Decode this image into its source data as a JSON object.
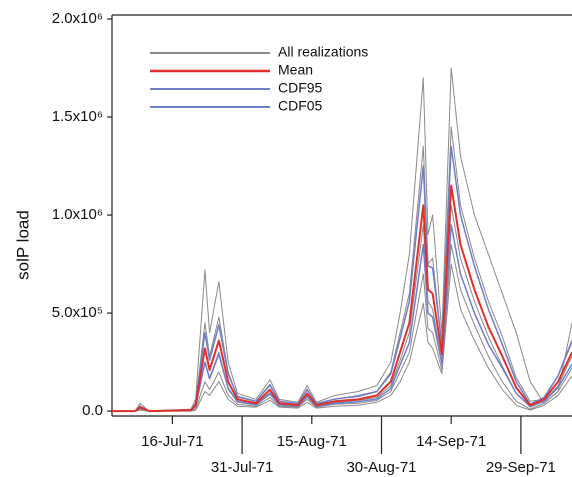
{
  "chart_data": {
    "type": "line",
    "y_label": "solP load",
    "x": [
      "1971-07-03",
      "1971-07-08",
      "1971-07-09",
      "1971-07-11",
      "1971-07-20",
      "1971-07-21",
      "1971-07-23",
      "1971-07-24",
      "1971-07-26",
      "1971-07-28",
      "1971-07-30",
      "1971-08-03",
      "1971-08-06",
      "1971-08-08",
      "1971-08-12",
      "1971-08-14",
      "1971-08-16",
      "1971-08-20",
      "1971-08-25",
      "1971-08-29",
      "1971-09-01",
      "1971-09-03",
      "1971-09-05",
      "1971-09-08",
      "1971-09-09",
      "1971-09-10",
      "1971-09-12",
      "1971-09-14",
      "1971-09-16",
      "1971-09-19",
      "1971-09-22",
      "1971-09-25",
      "1971-09-28",
      "1971-10-01",
      "1971-10-04",
      "1971-10-07",
      "1971-10-10"
    ],
    "realizations": {
      "name": "All realizations",
      "color": "#8a8a8a",
      "values": [
        [
          0,
          0,
          40000,
          0,
          10000,
          60000,
          720000,
          400000,
          660000,
          250000,
          90000,
          60000,
          160000,
          60000,
          45000,
          130000,
          45000,
          80000,
          100000,
          130000,
          250000,
          500000,
          800000,
          1700000,
          900000,
          1000000,
          400000,
          1750000,
          1300000,
          1000000,
          800000,
          600000,
          400000,
          150000,
          40000,
          100000,
          450000
        ],
        [
          0,
          0,
          25000,
          0,
          5000,
          40000,
          450000,
          280000,
          480000,
          200000,
          70000,
          50000,
          130000,
          50000,
          35000,
          110000,
          35000,
          60000,
          80000,
          100000,
          200000,
          400000,
          600000,
          1350000,
          750000,
          780000,
          330000,
          1450000,
          1050000,
          780000,
          560000,
          380000,
          170000,
          50000,
          60000,
          180000,
          350000
        ],
        [
          0,
          0,
          15000,
          0,
          5000,
          20000,
          250000,
          170000,
          300000,
          120000,
          50000,
          35000,
          95000,
          35000,
          25000,
          80000,
          25000,
          45000,
          55000,
          70000,
          130000,
          260000,
          400000,
          950000,
          560000,
          520000,
          250000,
          1050000,
          780000,
          560000,
          380000,
          230000,
          90000,
          20000,
          50000,
          130000,
          280000
        ],
        [
          0,
          0,
          10000,
          0,
          0,
          10000,
          150000,
          110000,
          200000,
          80000,
          35000,
          25000,
          70000,
          25000,
          20000,
          60000,
          20000,
          35000,
          40000,
          55000,
          100000,
          200000,
          300000,
          700000,
          420000,
          400000,
          210000,
          850000,
          620000,
          440000,
          280000,
          150000,
          50000,
          10000,
          40000,
          100000,
          220000
        ],
        [
          0,
          0,
          5000,
          0,
          0,
          5000,
          100000,
          80000,
          150000,
          60000,
          25000,
          20000,
          55000,
          20000,
          15000,
          45000,
          15000,
          25000,
          30000,
          45000,
          80000,
          150000,
          250000,
          550000,
          350000,
          320000,
          190000,
          750000,
          520000,
          360000,
          220000,
          110000,
          30000,
          5000,
          30000,
          80000,
          180000
        ]
      ]
    },
    "series": [
      {
        "name": "Mean",
        "color": "#e0302a",
        "values": [
          0,
          0,
          20000,
          0,
          5000,
          30000,
          320000,
          210000,
          360000,
          150000,
          60000,
          40000,
          110000,
          40000,
          30000,
          90000,
          30000,
          50000,
          60000,
          80000,
          150000,
          300000,
          450000,
          1050000,
          620000,
          600000,
          290000,
          1150000,
          850000,
          620000,
          430000,
          280000,
          120000,
          30000,
          60000,
          150000,
          300000
        ]
      },
      {
        "name": "CDF95",
        "color": "#6f7fc8",
        "values": [
          0,
          0,
          25000,
          0,
          6000,
          40000,
          400000,
          260000,
          440000,
          190000,
          75000,
          50000,
          135000,
          50000,
          38000,
          110000,
          38000,
          62000,
          75000,
          100000,
          190000,
          370000,
          560000,
          1250000,
          740000,
          730000,
          340000,
          1350000,
          1000000,
          740000,
          520000,
          340000,
          150000,
          35000,
          70000,
          180000,
          360000
        ]
      },
      {
        "name": "CDF05",
        "color": "#6f7fc8",
        "values": [
          0,
          0,
          15000,
          0,
          4000,
          22000,
          250000,
          165000,
          290000,
          115000,
          47000,
          32000,
          88000,
          32000,
          24000,
          72000,
          24000,
          40000,
          48000,
          62000,
          115000,
          235000,
          350000,
          850000,
          500000,
          480000,
          240000,
          950000,
          700000,
          500000,
          340000,
          220000,
          90000,
          25000,
          50000,
          120000,
          240000
        ]
      }
    ],
    "xlim": [
      "1971-07-03",
      "1971-10-10"
    ],
    "xticks": [
      {
        "value": "1971-07-16",
        "label": "16-Jul-71"
      },
      {
        "value": "1971-07-31",
        "label": "31-Jul-71"
      },
      {
        "value": "1971-08-15",
        "label": "15-Aug-71"
      },
      {
        "value": "1971-08-30",
        "label": "30-Aug-71"
      },
      {
        "value": "1971-09-14",
        "label": "14-Sep-71"
      },
      {
        "value": "1971-09-29",
        "label": "29-Sep-71"
      }
    ],
    "ylim": [
      -25000,
      2000000
    ],
    "yticks": [
      {
        "value": 0,
        "label": "0.0"
      },
      {
        "value": 500000,
        "label": "5.0x10⁵"
      },
      {
        "value": 1000000,
        "label": "1.0x10⁶"
      },
      {
        "value": 1500000,
        "label": "1.5x10⁶"
      },
      {
        "value": 2000000,
        "label": "2.0x10⁶"
      }
    ],
    "legend": "upper-left"
  }
}
